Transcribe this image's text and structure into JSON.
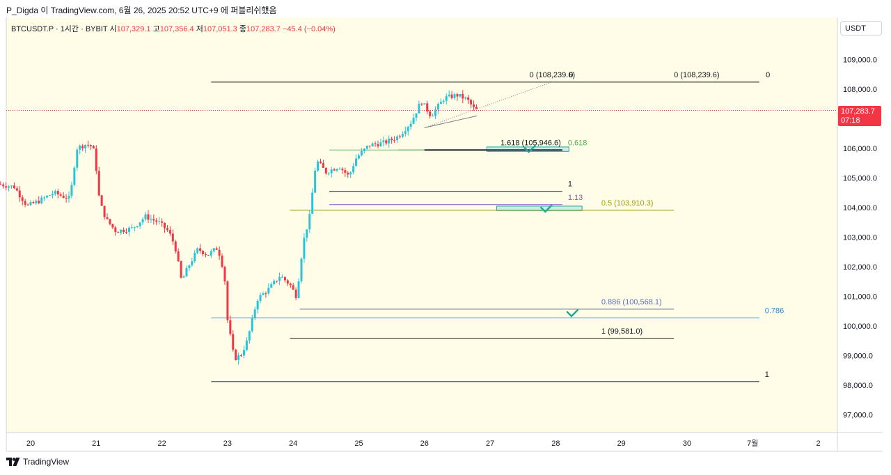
{
  "caption": "P_Digda 이 TradingView.com, 6월 26, 2025 20:52 UTC+9 에 퍼블리쉬했음",
  "legend": {
    "symbol": "BTCUSDT.P · 1시간 · BYBIT",
    "open_label": "시",
    "open": "107,329.1",
    "high_label": "고",
    "high": "107,356.4",
    "low_label": "저",
    "low": "107,051.3",
    "close_label": "종",
    "close": "107,283.7",
    "change": "−45.4 (−0.04%)"
  },
  "price_axis": {
    "unit": "USDT",
    "current_price": "107,283.7",
    "countdown": "07:18"
  },
  "footer": {
    "brand": "TradingView"
  },
  "colors": {
    "up": "#26c6da",
    "down": "#f23645",
    "background": "#fffde7"
  },
  "chart_data": {
    "type": "candlestick",
    "timeframe": "1h",
    "ylim": [
      96500,
      110200
    ],
    "y_ticks": [
      97000,
      98000,
      99000,
      100000,
      101000,
      102000,
      103000,
      104000,
      105000,
      106000,
      107000,
      108000,
      109000
    ],
    "y_tick_labels": [
      "97,000.0",
      "98,000.0",
      "99,000.0",
      "100,000.0",
      "101,000.0",
      "102,000.0",
      "103,000.0",
      "104,000.0",
      "105,000.0",
      "106,000.0",
      "107,000.0",
      "108,000.0",
      "109,000.0"
    ],
    "x_ticks": [
      {
        "label": "20",
        "day": 20
      },
      {
        "label": "21",
        "day": 21
      },
      {
        "label": "22",
        "day": 22
      },
      {
        "label": "23",
        "day": 23
      },
      {
        "label": "24",
        "day": 24
      },
      {
        "label": "25",
        "day": 25
      },
      {
        "label": "26",
        "day": 26
      },
      {
        "label": "27",
        "day": 27
      },
      {
        "label": "28",
        "day": 28
      },
      {
        "label": "29",
        "day": 29
      },
      {
        "label": "30",
        "day": 30
      },
      {
        "label": "7월",
        "day": 31
      },
      {
        "label": "2",
        "day": 32
      }
    ],
    "current_price": 107283.7,
    "price_path": [
      [
        19.5,
        104800
      ],
      [
        19.75,
        104700
      ],
      [
        19.95,
        104050
      ],
      [
        20.15,
        104250
      ],
      [
        20.35,
        104500
      ],
      [
        20.6,
        104300
      ],
      [
        20.7,
        106000
      ],
      [
        20.85,
        106150
      ],
      [
        20.95,
        106050
      ],
      [
        21.0,
        105300
      ],
      [
        21.05,
        104200
      ],
      [
        21.15,
        103600
      ],
      [
        21.3,
        103200
      ],
      [
        21.55,
        103300
      ],
      [
        21.75,
        103700
      ],
      [
        21.95,
        103500
      ],
      [
        22.1,
        103200
      ],
      [
        22.2,
        102700
      ],
      [
        22.3,
        101500
      ],
      [
        22.4,
        102000
      ],
      [
        22.55,
        102600
      ],
      [
        22.7,
        102400
      ],
      [
        22.85,
        102650
      ],
      [
        22.95,
        101800
      ],
      [
        23.0,
        100200
      ],
      [
        23.1,
        98900
      ],
      [
        23.2,
        99000
      ],
      [
        23.3,
        99500
      ],
      [
        23.45,
        100900
      ],
      [
        23.65,
        101300
      ],
      [
        23.8,
        101700
      ],
      [
        23.95,
        101400
      ],
      [
        24.05,
        101000
      ],
      [
        24.15,
        102800
      ],
      [
        24.25,
        103700
      ],
      [
        24.35,
        105600
      ],
      [
        24.5,
        105200
      ],
      [
        24.7,
        105400
      ],
      [
        24.85,
        105050
      ],
      [
        24.95,
        105650
      ],
      [
        25.15,
        106100
      ],
      [
        25.4,
        106200
      ],
      [
        25.6,
        106400
      ],
      [
        25.8,
        106900
      ],
      [
        25.95,
        107600
      ],
      [
        26.1,
        107100
      ],
      [
        26.3,
        107700
      ],
      [
        26.5,
        107800
      ],
      [
        26.65,
        107650
      ],
      [
        26.75,
        107350
      ],
      [
        26.8,
        107283.7
      ]
    ],
    "annotations": [
      {
        "label": "0 (108,239.6)",
        "price": 108239.6,
        "from_day": 22.75,
        "to_day": 31.1,
        "color": "#131722"
      },
      {
        "label": "0",
        "price": 108239.6,
        "from_day": 22.75,
        "to_day": 31.1,
        "color": "#131722",
        "note_at_day": 31.2
      },
      {
        "label": "0",
        "price": 108239.6,
        "from_day": 22.75,
        "to_day": 31.1,
        "color": "#131722",
        "note_at_day": 28.2
      },
      {
        "label": "1.618 (105,946.6)",
        "price": 105946.6,
        "from_day": 25.6,
        "to_day": 28.1,
        "color": "#131722"
      },
      {
        "label": "0.618",
        "price": 105946.6,
        "from_day": 24.55,
        "to_day": 28.1,
        "color": "#4caf50"
      },
      {
        "label": "1",
        "price": 104550,
        "from_day": 24.55,
        "to_day": 28.1,
        "color": "#131722"
      },
      {
        "label": "1.13",
        "price": 104100,
        "from_day": 24.55,
        "to_day": 28.1,
        "color": "#7e57c2"
      },
      {
        "label": "0.5 (103,910.3)",
        "price": 103910.3,
        "from_day": 23.95,
        "to_day": 29.8,
        "color": "#9c9c00"
      },
      {
        "label": "0.886 (100,568.1)",
        "price": 100568.1,
        "from_day": 24.1,
        "to_day": 29.8,
        "color": "#5c6bc0"
      },
      {
        "label": "0.786",
        "price": 100270,
        "from_day": 22.75,
        "to_day": 31.1,
        "color": "#1e88e5"
      },
      {
        "label": "1 (99,581.0)",
        "price": 99581.0,
        "from_day": 23.95,
        "to_day": 29.8,
        "color": "#131722"
      },
      {
        "label": "1",
        "price": 98120,
        "from_day": 22.75,
        "to_day": 31.1,
        "color": "#131722"
      }
    ],
    "zones": [
      {
        "from_day": 26.95,
        "to_day": 28.2,
        "low": 105900,
        "high": 106050
      },
      {
        "from_day": 27.1,
        "to_day": 28.4,
        "low": 103900,
        "high": 104050
      }
    ],
    "check_marks": [
      {
        "day": 27.6,
        "price": 105950
      },
      {
        "day": 27.85,
        "price": 103930
      },
      {
        "day": 28.25,
        "price": 100400
      }
    ]
  }
}
